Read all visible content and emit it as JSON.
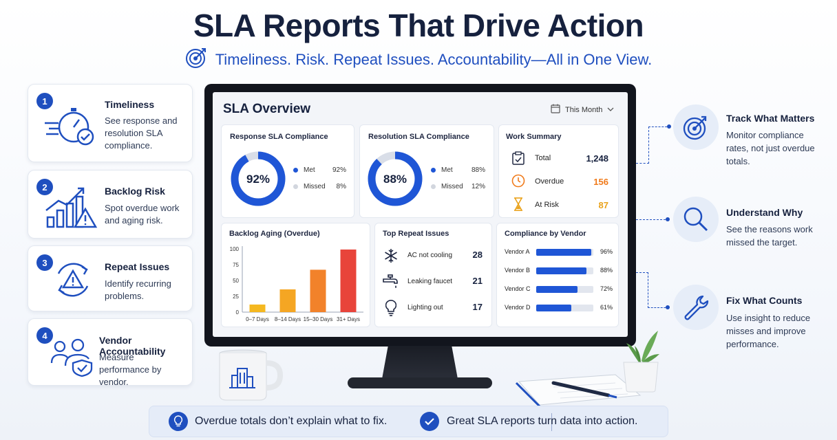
{
  "header": {
    "title": "SLA Reports That Drive Action",
    "subtitle": "Timeliness. Risk. Repeat Issues. Accountability—All in One View."
  },
  "features": [
    {
      "number": "1",
      "title": "Timeliness",
      "description": "See response and resolution SLA compliance.",
      "icon": "stopwatch-icon"
    },
    {
      "number": "2",
      "title": "Backlog Risk",
      "description": "Spot overdue work and aging risk.",
      "icon": "chart-warning-icon"
    },
    {
      "number": "3",
      "title": "Repeat Issues",
      "description": "Identify recurring problems.",
      "icon": "recurring-warning-icon"
    },
    {
      "number": "4",
      "title": "Vendor Accountability",
      "description": "Measure performance by vendor.",
      "icon": "vendor-shield-icon"
    }
  ],
  "dashboard": {
    "title": "SLA Overview",
    "period": "This Month",
    "response": {
      "title": "Response SLA Compliance",
      "center": "92%",
      "met_label": "Met",
      "met": "92%",
      "missed_label": "Missed",
      "missed": "8%",
      "met_fraction": 0.92
    },
    "resolution": {
      "title": "Resolution SLA Compliance",
      "center": "88%",
      "met_label": "Met",
      "met": "88%",
      "missed_label": "Missed",
      "missed": "12%",
      "met_fraction": 0.88
    },
    "work_summary": {
      "title": "Work Summary",
      "rows": [
        {
          "label": "Total",
          "value": "1,248",
          "color": "#16213e",
          "icon": "clipboard-check-icon"
        },
        {
          "label": "Overdue",
          "value": "156",
          "color": "#f07a1a",
          "icon": "clock-icon"
        },
        {
          "label": "At Risk",
          "value": "87",
          "color": "#e9a21a",
          "icon": "hourglass-icon"
        }
      ]
    },
    "backlog": {
      "title": "Backlog Aging (Overdue)"
    },
    "repeat": {
      "title": "Top Repeat Issues",
      "rows": [
        {
          "label": "AC not cooling",
          "value": "28",
          "icon": "snowflake-icon"
        },
        {
          "label": "Leaking faucet",
          "value": "21",
          "icon": "faucet-icon"
        },
        {
          "label": "Lighting out",
          "value": "17",
          "icon": "lightbulb-icon"
        }
      ]
    },
    "vendors": {
      "title": "Compliance by Vendor",
      "rows": [
        {
          "label": "Vendor A",
          "pct": "96%",
          "fraction": 0.96
        },
        {
          "label": "Vendor B",
          "pct": "88%",
          "fraction": 0.88
        },
        {
          "label": "Vendor C",
          "pct": "72%",
          "fraction": 0.72
        },
        {
          "label": "Vendor D",
          "pct": "61%",
          "fraction": 0.61
        }
      ]
    }
  },
  "chart_data": {
    "type": "bar",
    "title": "Backlog Aging (Overdue)",
    "categories": [
      "0–7 Days",
      "8–14 Days",
      "15–30 Days",
      "31+ Days"
    ],
    "values": [
      12,
      36,
      67,
      99
    ],
    "colors": [
      "#f5b820",
      "#f5a623",
      "#f2822a",
      "#e8443a"
    ],
    "ylim": [
      0,
      100
    ],
    "yticks": [
      "100",
      "75",
      "50",
      "25",
      "0"
    ],
    "xlabel": "",
    "ylabel": ""
  },
  "benefits": [
    {
      "title": "Track What Matters",
      "description": "Monitor compliance rates, not just overdue totals.",
      "icon": "target-icon"
    },
    {
      "title": "Understand Why",
      "description": "See the reasons work missed the target.",
      "icon": "magnifier-icon"
    },
    {
      "title": "Fix What Counts",
      "description": "Use insight to reduce misses and improve performance.",
      "icon": "wrench-icon"
    }
  ],
  "banner": {
    "left": "Overdue totals don’t explain what to fix.",
    "right": "Great SLA reports turn data into action."
  }
}
